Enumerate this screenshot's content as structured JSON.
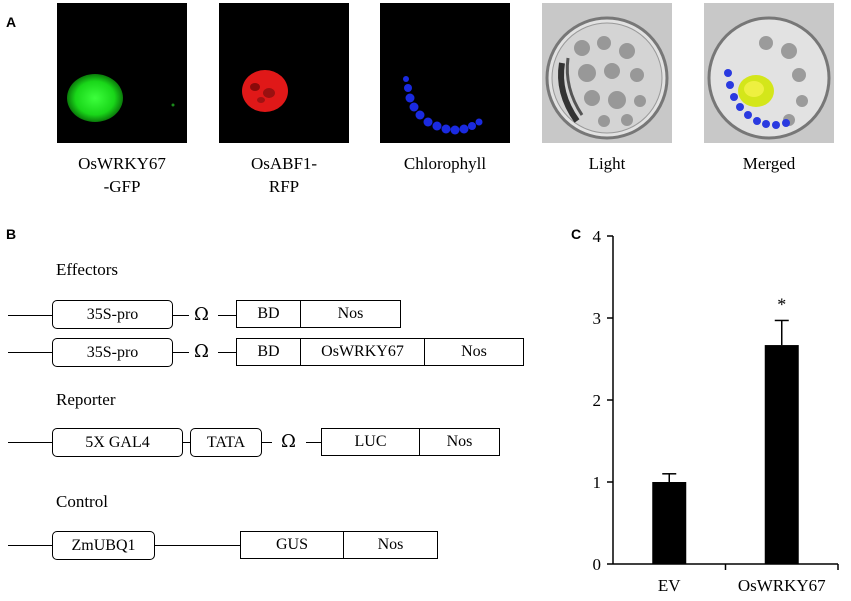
{
  "panels": {
    "a": "A",
    "b": "B",
    "c": "C"
  },
  "microscopy": {
    "images": [
      {
        "name": "gfp",
        "label_lines": [
          "OsWRKY67",
          "-GFP"
        ]
      },
      {
        "name": "rfp",
        "label_lines": [
          "OsABF1-",
          "RFP"
        ]
      },
      {
        "name": "chlorophyll",
        "label_lines": [
          "Chlorophyll"
        ]
      },
      {
        "name": "light",
        "label_lines": [
          "Light"
        ]
      },
      {
        "name": "merged",
        "label_lines": [
          "Merged"
        ]
      }
    ]
  },
  "constructs": {
    "effectors_label": "Effectors",
    "reporter_label": "Reporter",
    "control_label": "Control",
    "omega": "Ω",
    "effector1": {
      "promoter": "35S-pro",
      "bd": "BD",
      "nos": "Nos"
    },
    "effector2": {
      "promoter": "35S-pro",
      "bd": "BD",
      "gene": "OsWRKY67",
      "nos": "Nos"
    },
    "reporter": {
      "gal4": "5X GAL4",
      "tata": "TATA",
      "luc": "LUC",
      "nos": "Nos"
    },
    "control": {
      "promoter": "ZmUBQ1",
      "gus": "GUS",
      "nos": "Nos"
    }
  },
  "chart_data": {
    "type": "bar",
    "categories": [
      "EV",
      "OsWRKY67"
    ],
    "values": [
      1.0,
      2.67
    ],
    "errors": [
      0.1,
      0.3
    ],
    "significance": [
      "",
      "*"
    ],
    "ylim": [
      0,
      4
    ],
    "yticks": [
      0,
      1,
      2,
      3,
      4
    ],
    "bar_color": "#000000"
  }
}
